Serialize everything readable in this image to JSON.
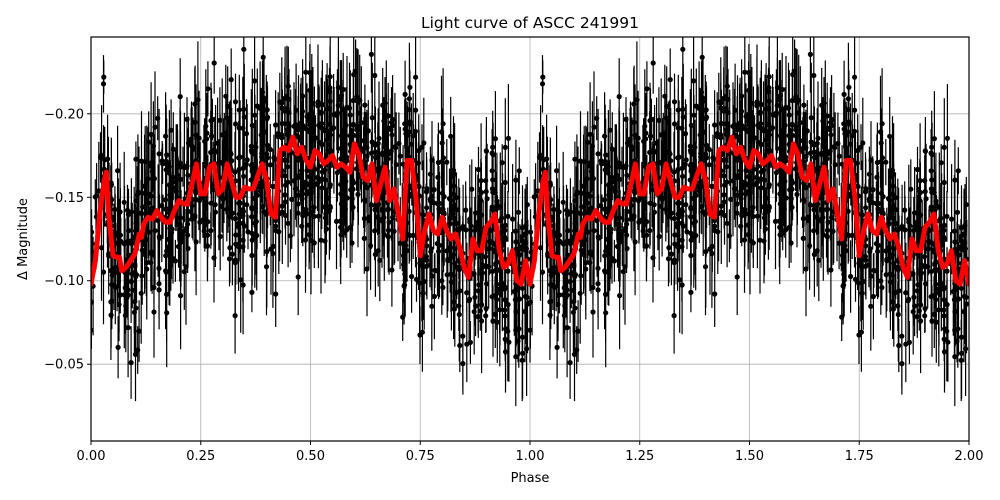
{
  "figure": {
    "title": "Light curve of ASCC 241991",
    "xlabel": "Phase",
    "ylabel": "Δ Magnitude"
  },
  "chart_data": {
    "type": "scatter",
    "title": "Light curve of ASCC 241991",
    "xlabel": "Phase",
    "ylabel": "Δ Magnitude",
    "xlim": [
      0.0,
      2.0
    ],
    "ylim": [
      -0.246,
      -0.004
    ],
    "y_inverted": true,
    "grid": true,
    "legend": null,
    "xticks": [
      0.0,
      0.25,
      0.5,
      0.75,
      1.0,
      1.25,
      1.5,
      1.75,
      2.0
    ],
    "xtick_labels": [
      "0.00",
      "0.25",
      "0.50",
      "0.75",
      "1.00",
      "1.25",
      "1.50",
      "1.75",
      "2.00"
    ],
    "yticks": [
      -0.2,
      -0.15,
      -0.1,
      -0.05
    ],
    "ytick_labels": [
      "−0.20",
      "−0.15",
      "−0.10",
      "−0.05"
    ],
    "series": [
      {
        "name": "observations",
        "kind": "errorbar",
        "color": "#000000",
        "marker": "o",
        "description": "Dense phase-folded photometric points with vertical error bars spanning the full plot range (approx −0.25 to 0.0); data repeated for phase 1–2",
        "typical_range": [
          -0.23,
          -0.03
        ]
      },
      {
        "name": "binned mean",
        "kind": "line",
        "color": "#ff0000",
        "linewidth": 5,
        "period_repeat": true,
        "x": [
          0.0,
          0.01,
          0.02,
          0.03,
          0.035,
          0.04,
          0.05,
          0.06,
          0.065,
          0.07,
          0.08,
          0.09,
          0.1,
          0.11,
          0.115,
          0.12,
          0.13,
          0.14,
          0.15,
          0.16,
          0.17,
          0.18,
          0.19,
          0.2,
          0.21,
          0.22,
          0.23,
          0.24,
          0.25,
          0.26,
          0.27,
          0.28,
          0.29,
          0.3,
          0.31,
          0.32,
          0.33,
          0.34,
          0.35,
          0.36,
          0.37,
          0.38,
          0.39,
          0.4,
          0.41,
          0.42,
          0.43,
          0.44,
          0.45,
          0.46,
          0.47,
          0.48,
          0.49,
          0.5,
          0.51,
          0.52,
          0.53,
          0.54,
          0.55,
          0.56,
          0.57,
          0.58,
          0.59,
          0.6,
          0.61,
          0.62,
          0.63,
          0.64,
          0.65,
          0.66,
          0.67,
          0.68,
          0.69,
          0.7,
          0.71,
          0.72,
          0.73,
          0.74,
          0.75,
          0.76,
          0.77,
          0.78,
          0.79,
          0.8,
          0.81,
          0.82,
          0.83,
          0.84,
          0.85,
          0.86,
          0.87,
          0.88,
          0.89,
          0.9,
          0.91,
          0.92,
          0.93,
          0.94,
          0.95,
          0.96,
          0.97,
          0.98,
          0.99,
          1.0
        ],
        "y": [
          -0.098,
          -0.112,
          -0.14,
          -0.16,
          -0.165,
          -0.14,
          -0.115,
          -0.114,
          -0.114,
          -0.106,
          -0.108,
          -0.112,
          -0.116,
          -0.128,
          -0.126,
          -0.134,
          -0.138,
          -0.137,
          -0.142,
          -0.138,
          -0.135,
          -0.135,
          -0.142,
          -0.148,
          -0.146,
          -0.146,
          -0.158,
          -0.17,
          -0.152,
          -0.152,
          -0.168,
          -0.17,
          -0.152,
          -0.155,
          -0.17,
          -0.16,
          -0.15,
          -0.15,
          -0.156,
          -0.155,
          -0.155,
          -0.163,
          -0.17,
          -0.16,
          -0.14,
          -0.138,
          -0.178,
          -0.18,
          -0.178,
          -0.186,
          -0.176,
          -0.18,
          -0.172,
          -0.168,
          -0.178,
          -0.176,
          -0.17,
          -0.172,
          -0.175,
          -0.168,
          -0.17,
          -0.168,
          -0.165,
          -0.182,
          -0.176,
          -0.162,
          -0.16,
          -0.17,
          -0.148,
          -0.158,
          -0.168,
          -0.148,
          -0.155,
          -0.14,
          -0.125,
          -0.172,
          -0.172,
          -0.15,
          -0.115,
          -0.13,
          -0.14,
          -0.13,
          -0.128,
          -0.138,
          -0.13,
          -0.125,
          -0.128,
          -0.12,
          -0.108,
          -0.102,
          -0.125,
          -0.118,
          -0.118,
          -0.132,
          -0.135,
          -0.14,
          -0.118,
          -0.108,
          -0.11,
          -0.118,
          -0.1,
          -0.098,
          -0.112,
          -0.098
        ]
      }
    ]
  }
}
